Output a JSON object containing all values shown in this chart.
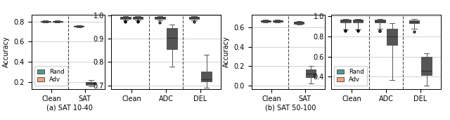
{
  "teal": "#4c9a8e",
  "orange": "#f4a67a",
  "fig_width": 6.4,
  "fig_height": 1.71,
  "panel_a": {
    "subtitle": "(a) SAT 10-40",
    "left": {
      "groups": [
        "Clean",
        "SAT"
      ],
      "ylim": [
        0.13,
        0.87
      ],
      "yticks": [
        0.2,
        0.4,
        0.6,
        0.8
      ],
      "ylabel": "Accuracy",
      "rand_boxes": [
        {
          "whislo": 0.79,
          "q1": 0.796,
          "med": 0.8,
          "q3": 0.803,
          "whishi": 0.81,
          "fliers": []
        },
        {
          "whislo": 0.742,
          "q1": 0.748,
          "med": 0.753,
          "q3": 0.758,
          "whishi": 0.764,
          "fliers": []
        }
      ],
      "adv_boxes": [
        {
          "whislo": 0.79,
          "q1": 0.796,
          "med": 0.8,
          "q3": 0.803,
          "whishi": 0.81,
          "fliers": []
        },
        {
          "whislo": 0.155,
          "q1": 0.17,
          "med": 0.19,
          "q3": 0.2,
          "whishi": 0.215,
          "fliers": []
        }
      ],
      "show_legend": true
    },
    "right": {
      "groups": [
        "Clean",
        "ADC",
        "DEL"
      ],
      "ylim": [
        0.685,
        1.005
      ],
      "yticks": [
        0.7,
        0.8,
        0.9,
        1.0
      ],
      "ylabel": "",
      "rand_boxes": [
        {
          "whislo": 0.98,
          "q1": 0.985,
          "med": 0.99,
          "q3": 0.993,
          "whishi": 0.998,
          "fliers": [
            0.975,
            0.972
          ]
        },
        {
          "whislo": 0.978,
          "q1": 0.984,
          "med": 0.99,
          "q3": 0.994,
          "whishi": 0.999,
          "fliers": [
            0.97
          ]
        },
        {
          "whislo": 0.98,
          "q1": 0.984,
          "med": 0.99,
          "q3": 0.993,
          "whishi": 0.997,
          "fliers": [
            0.973
          ]
        }
      ],
      "adv_boxes": [
        {
          "whislo": 0.98,
          "q1": 0.985,
          "med": 0.99,
          "q3": 0.993,
          "whishi": 0.998,
          "fliers": [
            0.975,
            0.972
          ]
        },
        {
          "whislo": 0.78,
          "q1": 0.855,
          "med": 0.905,
          "q3": 0.945,
          "whishi": 0.96,
          "fliers": []
        },
        {
          "whislo": 0.69,
          "q1": 0.718,
          "med": 0.725,
          "q3": 0.758,
          "whishi": 0.83,
          "fliers": []
        }
      ],
      "show_legend": false
    }
  },
  "panel_b": {
    "subtitle": "(b) SAT 50-100",
    "left": {
      "groups": [
        "Clean",
        "SAT"
      ],
      "ylim": [
        -0.03,
        0.73
      ],
      "yticks": [
        0.0,
        0.2,
        0.4,
        0.6
      ],
      "ylabel": "Accuracy",
      "rand_boxes": [
        {
          "whislo": 0.648,
          "q1": 0.655,
          "med": 0.662,
          "q3": 0.67,
          "whishi": 0.678,
          "fliers": []
        },
        {
          "whislo": 0.628,
          "q1": 0.635,
          "med": 0.645,
          "q3": 0.655,
          "whishi": 0.663,
          "fliers": []
        }
      ],
      "adv_boxes": [
        {
          "whislo": 0.648,
          "q1": 0.655,
          "med": 0.662,
          "q3": 0.67,
          "whishi": 0.678,
          "fliers": []
        },
        {
          "whislo": 0.025,
          "q1": 0.085,
          "med": 0.125,
          "q3": 0.168,
          "whishi": 0.2,
          "fliers": []
        }
      ],
      "show_legend": false
    },
    "right": {
      "groups": [
        "Clean",
        "ADC",
        "DEL"
      ],
      "ylim": [
        0.28,
        1.02
      ],
      "yticks": [
        0.4,
        0.6,
        0.8,
        1.0
      ],
      "ylabel": "",
      "rand_boxes": [
        {
          "whislo": 0.87,
          "q1": 0.94,
          "med": 0.96,
          "q3": 0.97,
          "whishi": 0.978,
          "fliers": [
            0.855,
            0.86
          ]
        },
        {
          "whislo": 0.878,
          "q1": 0.94,
          "med": 0.955,
          "q3": 0.965,
          "whishi": 0.975,
          "fliers": [
            0.855,
            0.858
          ]
        },
        {
          "whislo": 0.878,
          "q1": 0.93,
          "med": 0.95,
          "q3": 0.962,
          "whishi": 0.974,
          "fliers": [
            0.85
          ]
        }
      ],
      "adv_boxes": [
        {
          "whislo": 0.87,
          "q1": 0.94,
          "med": 0.96,
          "q3": 0.97,
          "whishi": 0.978,
          "fliers": [
            0.855,
            0.86
          ]
        },
        {
          "whislo": 0.37,
          "q1": 0.72,
          "med": 0.8,
          "q3": 0.88,
          "whishi": 0.93,
          "fliers": []
        },
        {
          "whislo": 0.31,
          "q1": 0.418,
          "med": 0.46,
          "q3": 0.6,
          "whishi": 0.635,
          "fliers": []
        }
      ],
      "show_legend": true
    }
  }
}
